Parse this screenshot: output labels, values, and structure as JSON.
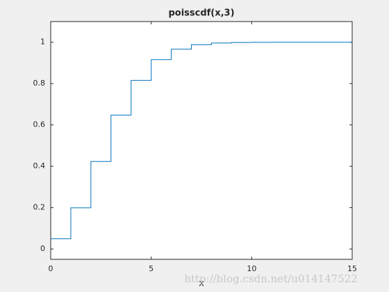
{
  "chart_data": {
    "type": "stairs",
    "title": "poisscdf(x,3)",
    "x_label": "x",
    "x": [
      0,
      1,
      2,
      3,
      4,
      5,
      6,
      7,
      8,
      9,
      10,
      11,
      12,
      13,
      14,
      15
    ],
    "series": [
      {
        "name": "poisscdf",
        "color": "#0072bd",
        "values": [
          0.0498,
          0.1991,
          0.4232,
          0.6472,
          0.8153,
          0.9161,
          0.9665,
          0.9881,
          0.9962,
          0.9989,
          0.9997,
          0.9999,
          1.0,
          1.0,
          1.0,
          1.0
        ]
      }
    ],
    "xlim": [
      0,
      15
    ],
    "xticks": [
      0,
      5,
      10,
      15
    ],
    "ylim": [
      -0.05,
      1.1
    ],
    "yticks": [
      0,
      0.2,
      0.4,
      0.6,
      0.8,
      1
    ],
    "grid": false,
    "watermark": "http://blog.csdn.net/u014147522"
  }
}
